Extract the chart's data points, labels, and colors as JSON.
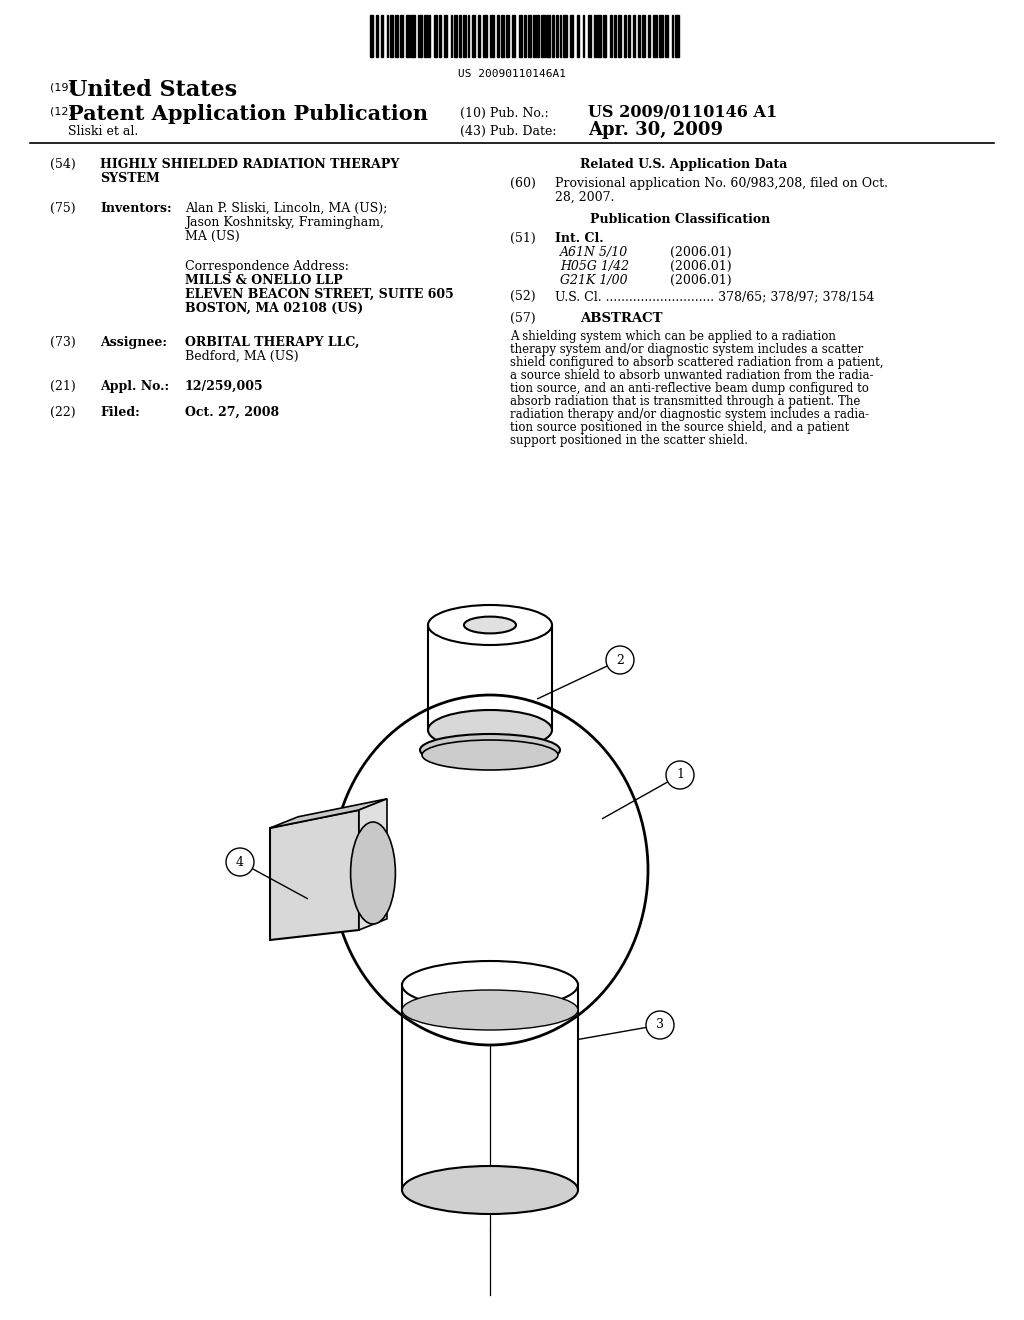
{
  "background_color": "#ffffff",
  "barcode_text": "US 20090110146A1",
  "title_19": "(19)",
  "title_country": "United States",
  "title_12": "(12)",
  "title_pub": "Patent Application Publication",
  "title_10": "(10) Pub. No.:",
  "pub_no": "US 2009/0110146 A1",
  "author_line": "Sliski et al.",
  "title_43": "(43) Pub. Date:",
  "pub_date": "Apr. 30, 2009",
  "field_54_label": "(54)",
  "field_75_label": "(75)",
  "field_75_title": "Inventors:",
  "corr_label": "Correspondence Address:",
  "corr_line1": "MILLS & ONELLO LLP",
  "corr_line2": "ELEVEN BEACON STREET, SUITE 605",
  "corr_line3": "BOSTON, MA 02108 (US)",
  "field_73_label": "(73)",
  "field_73_title": "Assignee:",
  "field_73_value1": "ORBITAL THERAPY LLC,",
  "field_73_value2": "Bedford, MA (US)",
  "field_21_label": "(21)",
  "field_21_title": "Appl. No.:",
  "field_21_value": "12/259,005",
  "field_22_label": "(22)",
  "field_22_title": "Filed:",
  "field_22_value": "Oct. 27, 2008",
  "related_header": "Related U.S. Application Data",
  "field_60_label": "(60)",
  "field_60_value1": "Provisional application No. 60/983,208, filed on Oct.",
  "field_60_value2": "28, 2007.",
  "pub_class_header": "Publication Classification",
  "field_51_label": "(51)",
  "field_51_title": "Int. Cl.",
  "field_51_classes": [
    [
      "A61N 5/10",
      "(2006.01)"
    ],
    [
      "H05G 1/42",
      "(2006.01)"
    ],
    [
      "G21K 1/00",
      "(2006.01)"
    ]
  ],
  "field_52_label": "(52)",
  "field_52_value": "U.S. Cl. ............................ 378/65; 378/97; 378/154",
  "field_57_label": "(57)",
  "field_57_title": "ABSTRACT",
  "abstract_lines": [
    "A shielding system which can be applied to a radiation",
    "therapy system and/or diagnostic system includes a scatter",
    "shield configured to absorb scattered radiation from a patient,",
    "a source shield to absorb unwanted radiation from the radia-",
    "tion source, and an anti-reflective beam dump configured to",
    "absorb radiation that is transmitted through a patient. The",
    "radiation therapy and/or diagnostic system includes a radia-",
    "tion source positioned in the source shield, and a patient",
    "support positioned in the scatter shield."
  ]
}
